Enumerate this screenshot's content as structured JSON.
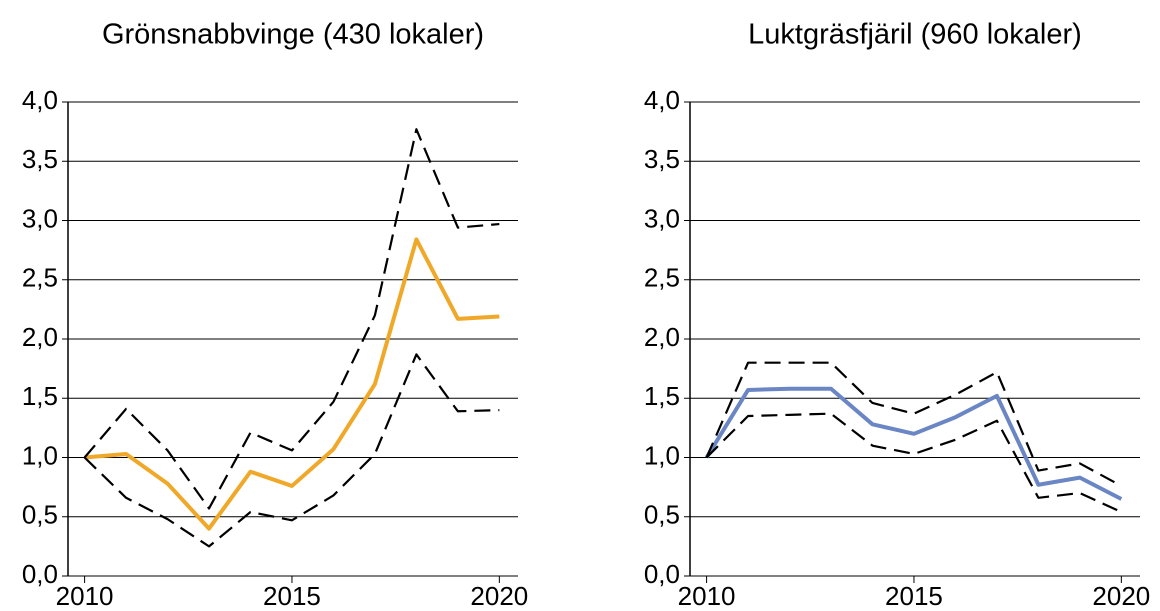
{
  "chart_data": [
    {
      "type": "line",
      "title": "Grönsnabbvinge (430 lokaler)",
      "x": [
        2010,
        2011,
        2012,
        2013,
        2014,
        2015,
        2016,
        2017,
        2018,
        2019,
        2020
      ],
      "series": [
        {
          "color": "#f0a829",
          "style": "solid",
          "values": [
            1.0,
            1.03,
            0.78,
            0.4,
            0.88,
            0.76,
            1.07,
            1.62,
            2.84,
            2.17,
            2.19
          ]
        },
        {
          "color": "#000000",
          "style": "dashed",
          "values": [
            1.0,
            1.41,
            1.06,
            0.57,
            1.21,
            1.06,
            1.47,
            2.2,
            3.77,
            2.94,
            2.97
          ]
        },
        {
          "color": "#000000",
          "style": "dashed",
          "values": [
            1.0,
            0.66,
            0.48,
            0.25,
            0.54,
            0.47,
            0.68,
            1.03,
            1.87,
            1.39,
            1.4
          ]
        }
      ],
      "xlim": [
        2009.6,
        2020.45
      ],
      "xticks": [
        2010,
        2015,
        2020
      ],
      "ylim": [
        0,
        4
      ],
      "yticks": [
        {
          "value": 0,
          "label": "0,0"
        },
        {
          "value": 0.5,
          "label": "0,5"
        },
        {
          "value": 1,
          "label": "1,0"
        },
        {
          "value": 1.5,
          "label": "1,5"
        },
        {
          "value": 2,
          "label": "2,0"
        },
        {
          "value": 2.5,
          "label": "2,5"
        },
        {
          "value": 3,
          "label": "3,0"
        },
        {
          "value": 3.5,
          "label": "3,5"
        },
        {
          "value": 4,
          "label": "4,0"
        }
      ],
      "grid": true
    },
    {
      "type": "line",
      "title": "Luktgräsfjäril (960 lokaler)",
      "x": [
        2010,
        2011,
        2012,
        2013,
        2014,
        2015,
        2016,
        2017,
        2018,
        2019,
        2020
      ],
      "series": [
        {
          "color": "#6a86c4",
          "style": "solid",
          "values": [
            1.0,
            1.57,
            1.58,
            1.58,
            1.28,
            1.2,
            1.34,
            1.52,
            0.77,
            0.83,
            0.65
          ]
        },
        {
          "color": "#000000",
          "style": "dashed",
          "values": [
            1.0,
            1.8,
            1.8,
            1.8,
            1.46,
            1.37,
            1.53,
            1.72,
            0.89,
            0.95,
            0.76
          ]
        },
        {
          "color": "#000000",
          "style": "dashed",
          "values": [
            1.0,
            1.35,
            1.36,
            1.37,
            1.1,
            1.03,
            1.15,
            1.31,
            0.66,
            0.7,
            0.54
          ]
        }
      ],
      "xlim": [
        2009.6,
        2020.45
      ],
      "xticks": [
        2010,
        2015,
        2020
      ],
      "ylim": [
        0,
        4
      ],
      "yticks": [
        {
          "value": 0,
          "label": "0,0"
        },
        {
          "value": 0.5,
          "label": "0,5"
        },
        {
          "value": 1,
          "label": "1,0"
        },
        {
          "value": 1.5,
          "label": "1,5"
        },
        {
          "value": 2,
          "label": "2,0"
        },
        {
          "value": 2.5,
          "label": "2,5"
        },
        {
          "value": 3,
          "label": "3,0"
        },
        {
          "value": 3.5,
          "label": "3,5"
        },
        {
          "value": 4,
          "label": "4,0"
        }
      ],
      "grid": true
    }
  ]
}
